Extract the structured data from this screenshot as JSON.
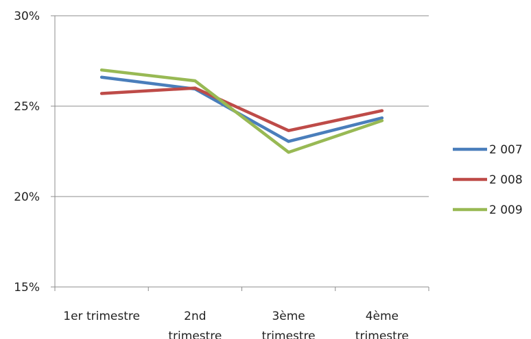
{
  "chart_data": {
    "type": "line",
    "categories": [
      [
        "1er trimestre"
      ],
      [
        "2nd",
        "trimestre"
      ],
      [
        "3ème",
        "trimestre"
      ],
      [
        "4ème",
        "trimestre"
      ]
    ],
    "series": [
      {
        "name": "2 007",
        "color": "#4a7ebb",
        "values": [
          26.6,
          25.95,
          23.05,
          24.35
        ]
      },
      {
        "name": "2 008",
        "color": "#be4b48",
        "values": [
          25.7,
          26.0,
          23.65,
          24.75
        ]
      },
      {
        "name": "2 009",
        "color": "#98b954",
        "values": [
          27.0,
          26.4,
          22.45,
          24.2
        ]
      }
    ],
    "y_ticks": [
      "15%",
      "20%",
      "25%",
      "30%"
    ],
    "ylim": [
      15,
      30
    ],
    "grid": true,
    "legend": "right"
  }
}
